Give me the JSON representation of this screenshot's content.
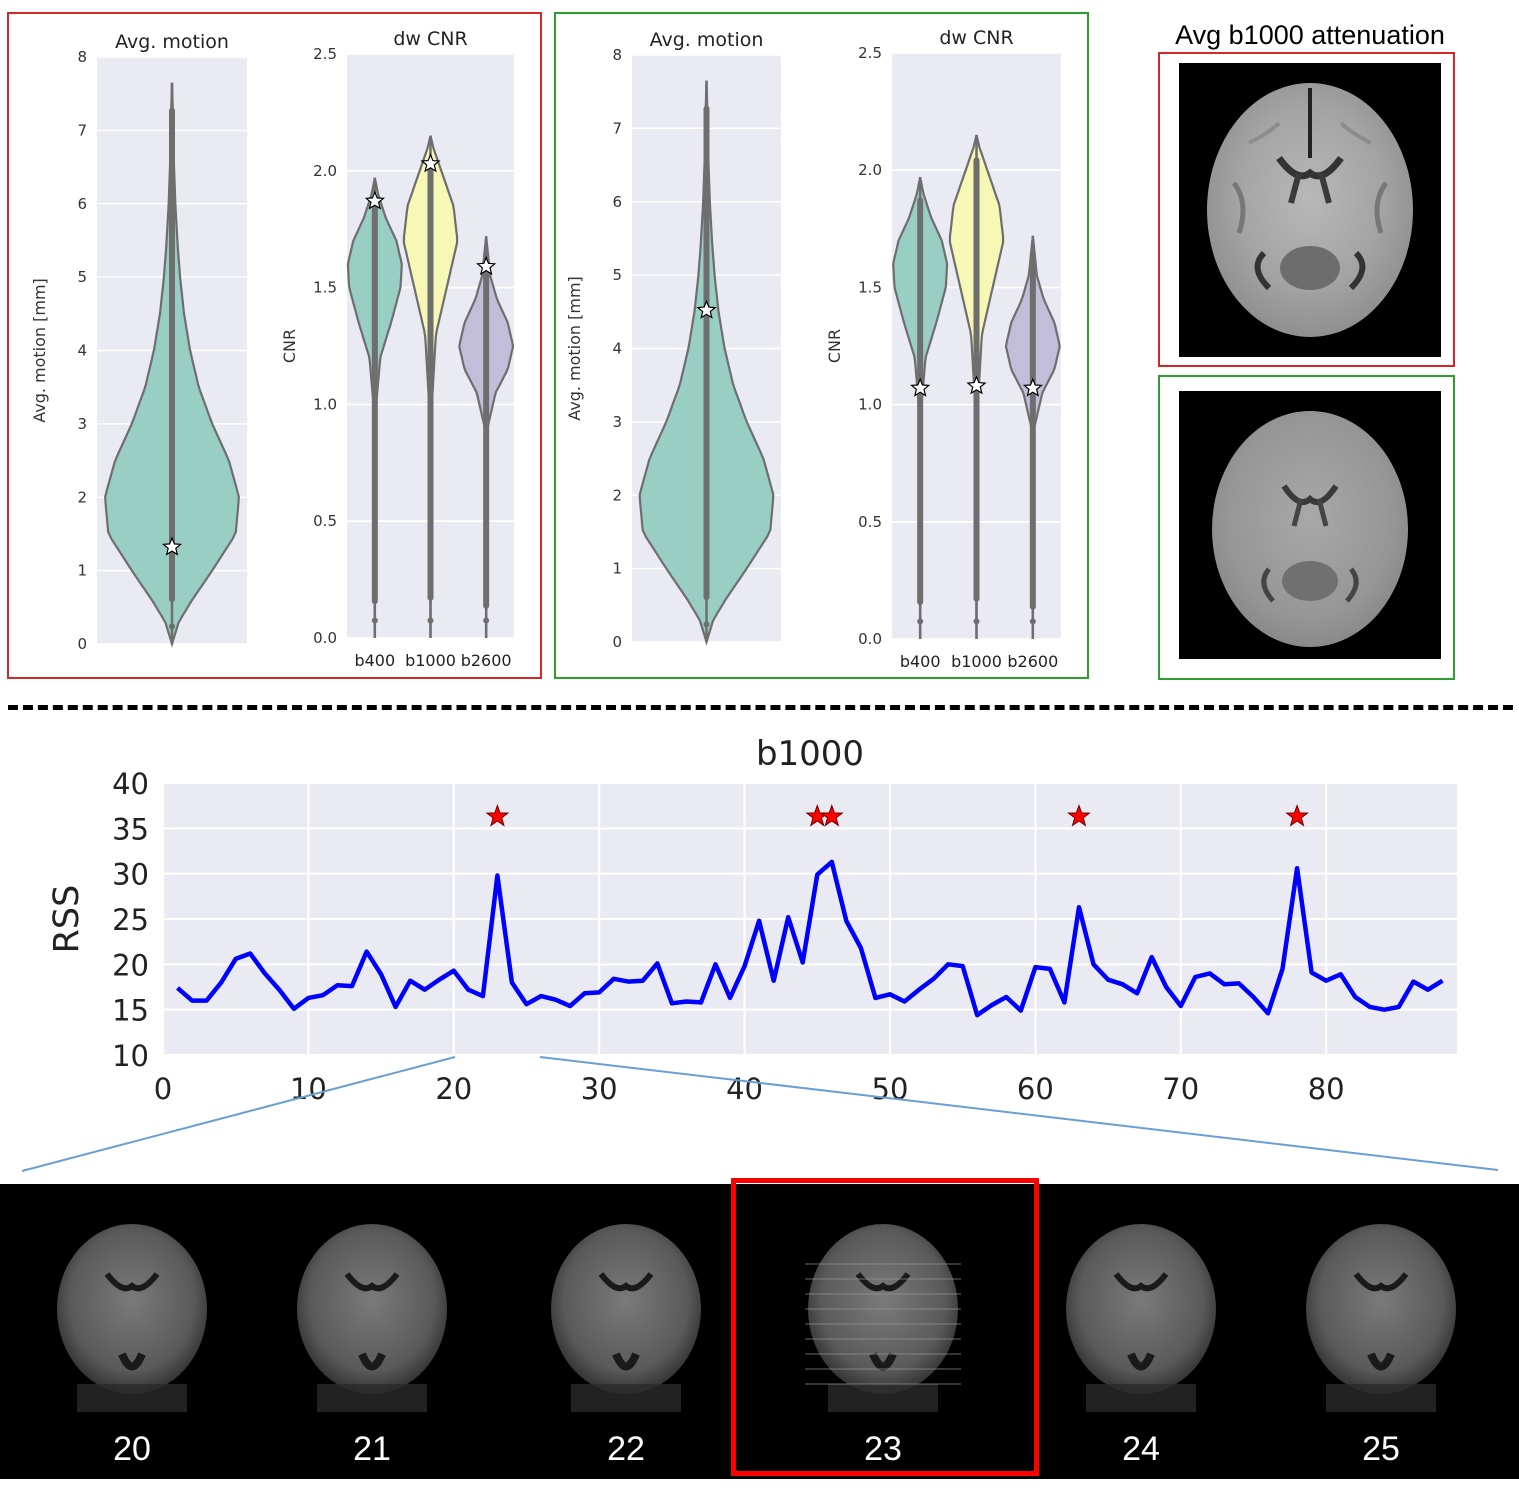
{
  "chart_data": [
    {
      "type": "violin",
      "panel": "red",
      "title": "Avg. motion",
      "ylabel": "Avg. motion [mm]",
      "ylim": [
        0,
        8
      ],
      "yticks": [
        0,
        1,
        2,
        3,
        4,
        5,
        6,
        7,
        8
      ],
      "violins": [
        {
          "label": "",
          "color": "#99cfc2",
          "min": 0.0,
          "max": 7.65,
          "profile": [
            [
              0,
              0.0
            ],
            [
              0.3,
              0.1
            ],
            [
              0.6,
              0.3
            ],
            [
              1.0,
              0.6
            ],
            [
              1.5,
              0.95
            ],
            [
              2.0,
              1.0
            ],
            [
              2.5,
              0.85
            ],
            [
              3.0,
              0.6
            ],
            [
              3.5,
              0.4
            ],
            [
              4.0,
              0.27
            ],
            [
              4.5,
              0.18
            ],
            [
              5.0,
              0.12
            ],
            [
              5.5,
              0.08
            ],
            [
              6.0,
              0.05
            ],
            [
              6.5,
              0.03
            ],
            [
              7.0,
              0.02
            ],
            [
              7.65,
              0.0
            ]
          ],
          "star": 1.32
        }
      ]
    },
    {
      "type": "violin",
      "panel": "red",
      "title": "dw CNR",
      "ylabel": "CNR",
      "ylim": [
        0,
        2.5
      ],
      "yticks": [
        "0.0",
        "0.5",
        "1.0",
        "1.5",
        "2.0",
        "2.5"
      ],
      "categories": [
        "b400",
        "b1000",
        "b2600"
      ],
      "violins": [
        {
          "label": "b400",
          "color": "#99cfc2",
          "min": 0.0,
          "max": 1.97,
          "profile": [
            [
              0,
              0.0
            ],
            [
              0.5,
              0.01
            ],
            [
              1.0,
              0.05
            ],
            [
              1.2,
              0.2
            ],
            [
              1.35,
              0.6
            ],
            [
              1.5,
              0.95
            ],
            [
              1.6,
              1.0
            ],
            [
              1.7,
              0.8
            ],
            [
              1.8,
              0.4
            ],
            [
              1.9,
              0.12
            ],
            [
              1.97,
              0.0
            ]
          ],
          "star": 1.87
        },
        {
          "label": "b1000",
          "color": "#f7f7b6",
          "min": 0.0,
          "max": 2.15,
          "profile": [
            [
              0,
              0.0
            ],
            [
              0.5,
              0.01
            ],
            [
              1.0,
              0.05
            ],
            [
              1.3,
              0.2
            ],
            [
              1.5,
              0.6
            ],
            [
              1.7,
              1.0
            ],
            [
              1.85,
              0.85
            ],
            [
              2.0,
              0.4
            ],
            [
              2.1,
              0.1
            ],
            [
              2.15,
              0.0
            ]
          ],
          "star": 2.03
        },
        {
          "label": "b2600",
          "color": "#c2bdd9",
          "min": 0.0,
          "max": 1.72,
          "profile": [
            [
              0,
              0.0
            ],
            [
              0.5,
              0.01
            ],
            [
              0.9,
              0.05
            ],
            [
              1.05,
              0.35
            ],
            [
              1.15,
              0.8
            ],
            [
              1.25,
              1.0
            ],
            [
              1.35,
              0.8
            ],
            [
              1.45,
              0.4
            ],
            [
              1.55,
              0.15
            ],
            [
              1.72,
              0.0
            ]
          ],
          "star": 1.59
        }
      ]
    },
    {
      "type": "violin",
      "panel": "green",
      "title": "Avg. motion",
      "ylabel": "Avg. motion [mm]",
      "ylim": [
        0,
        8
      ],
      "yticks": [
        0,
        1,
        2,
        3,
        4,
        5,
        6,
        7,
        8
      ],
      "violins": [
        {
          "label": "",
          "color": "#99cfc2",
          "min": 0.0,
          "max": 7.65,
          "profile": [
            [
              0,
              0.0
            ],
            [
              0.3,
              0.1
            ],
            [
              0.6,
              0.3
            ],
            [
              1.0,
              0.6
            ],
            [
              1.5,
              0.95
            ],
            [
              2.0,
              1.0
            ],
            [
              2.5,
              0.85
            ],
            [
              3.0,
              0.6
            ],
            [
              3.5,
              0.4
            ],
            [
              4.0,
              0.27
            ],
            [
              4.5,
              0.18
            ],
            [
              5.0,
              0.12
            ],
            [
              5.5,
              0.08
            ],
            [
              6.0,
              0.05
            ],
            [
              6.5,
              0.03
            ],
            [
              7.0,
              0.02
            ],
            [
              7.65,
              0.0
            ]
          ],
          "star": 4.52
        }
      ]
    },
    {
      "type": "violin",
      "panel": "green",
      "title": "dw CNR",
      "ylabel": "CNR",
      "ylim": [
        0,
        2.5
      ],
      "yticks": [
        "0.0",
        "0.5",
        "1.0",
        "1.5",
        "2.0",
        "2.5"
      ],
      "categories": [
        "b400",
        "b1000",
        "b2600"
      ],
      "violins": [
        {
          "label": "b400",
          "color": "#99cfc2",
          "min": 0.0,
          "max": 1.97,
          "profile": [
            [
              0,
              0.0
            ],
            [
              0.5,
              0.01
            ],
            [
              1.0,
              0.05
            ],
            [
              1.2,
              0.2
            ],
            [
              1.35,
              0.6
            ],
            [
              1.5,
              0.95
            ],
            [
              1.6,
              1.0
            ],
            [
              1.7,
              0.8
            ],
            [
              1.8,
              0.4
            ],
            [
              1.9,
              0.12
            ],
            [
              1.97,
              0.0
            ]
          ],
          "star": 1.07
        },
        {
          "label": "b1000",
          "color": "#f7f7b6",
          "min": 0.0,
          "max": 2.15,
          "profile": [
            [
              0,
              0.0
            ],
            [
              0.5,
              0.01
            ],
            [
              1.0,
              0.05
            ],
            [
              1.3,
              0.2
            ],
            [
              1.5,
              0.6
            ],
            [
              1.7,
              1.0
            ],
            [
              1.85,
              0.85
            ],
            [
              2.0,
              0.4
            ],
            [
              2.1,
              0.1
            ],
            [
              2.15,
              0.0
            ]
          ],
          "star": 1.08
        },
        {
          "label": "b2600",
          "color": "#c2bdd9",
          "min": 0.0,
          "max": 1.72,
          "profile": [
            [
              0,
              0.0
            ],
            [
              0.5,
              0.01
            ],
            [
              0.9,
              0.05
            ],
            [
              1.05,
              0.35
            ],
            [
              1.15,
              0.8
            ],
            [
              1.25,
              1.0
            ],
            [
              1.35,
              0.8
            ],
            [
              1.45,
              0.4
            ],
            [
              1.55,
              0.15
            ],
            [
              1.72,
              0.0
            ]
          ],
          "star": 1.07
        }
      ]
    },
    {
      "type": "line",
      "title": "b1000",
      "xlabel": "",
      "ylabel": "RSS",
      "xlim": [
        0,
        89
      ],
      "ylim": [
        10,
        40
      ],
      "xticks": [
        0,
        10,
        20,
        30,
        40,
        50,
        60,
        70,
        80
      ],
      "yticks": [
        10,
        15,
        20,
        25,
        30,
        35,
        40
      ],
      "line_color": "#0000ff",
      "x": [
        1,
        2,
        3,
        4,
        5,
        6,
        7,
        8,
        9,
        10,
        11,
        12,
        13,
        14,
        15,
        16,
        17,
        18,
        19,
        20,
        21,
        22,
        23,
        24,
        25,
        26,
        27,
        28,
        29,
        30,
        31,
        32,
        33,
        34,
        35,
        36,
        37,
        38,
        39,
        40,
        41,
        42,
        43,
        44,
        45,
        46,
        47,
        48,
        49,
        50,
        51,
        52,
        53,
        54,
        55,
        56,
        57,
        58,
        59,
        60,
        61,
        62,
        63,
        64,
        65,
        66,
        67,
        68,
        69,
        70,
        71,
        72,
        73,
        74,
        75,
        76,
        77,
        78,
        79,
        80,
        81,
        82,
        83,
        84,
        85,
        86,
        87,
        88
      ],
      "y": [
        17.4,
        16.0,
        16.0,
        18.0,
        20.6,
        21.2,
        19.0,
        17.2,
        15.1,
        16.3,
        16.6,
        17.7,
        17.6,
        21.4,
        18.9,
        15.3,
        18.2,
        17.2,
        18.3,
        19.3,
        17.2,
        16.5,
        29.8,
        18.0,
        15.6,
        16.5,
        16.1,
        15.4,
        16.8,
        16.9,
        18.4,
        18.1,
        18.2,
        20.1,
        15.7,
        15.9,
        15.8,
        20.0,
        16.3,
        19.8,
        24.8,
        18.2,
        25.2,
        20.2,
        29.9,
        31.3,
        24.8,
        21.8,
        16.3,
        16.7,
        15.9,
        17.2,
        18.4,
        20.0,
        19.8,
        14.4,
        15.5,
        16.4,
        14.9,
        19.7,
        19.5,
        15.8,
        26.3,
        20.0,
        18.3,
        17.8,
        16.8,
        20.8,
        17.5,
        15.4,
        18.6,
        19.0,
        17.8,
        17.9,
        16.4,
        14.6,
        19.5,
        30.6,
        19.1,
        18.2,
        18.9,
        16.4,
        15.3,
        15.0,
        15.3,
        18.1,
        17.2,
        18.2
      ],
      "outliers": {
        "x": [
          23,
          45,
          46,
          63,
          78
        ],
        "y": [
          36.3,
          36.3,
          36.3,
          36.3,
          36.3
        ],
        "color": "#ff0000"
      }
    }
  ],
  "attenuation": {
    "title": "Avg b1000 attenuation"
  },
  "slices": {
    "labels": [
      "20",
      "21",
      "22",
      "23",
      "24",
      "25"
    ],
    "highlighted": "23",
    "highlight_color": "#ff0000"
  },
  "colors": {
    "red_panel": "#d62728",
    "green_panel": "#2ca02c",
    "zoom_lines": "#6a9fd4",
    "plot_bg": "#eaeaf2"
  }
}
